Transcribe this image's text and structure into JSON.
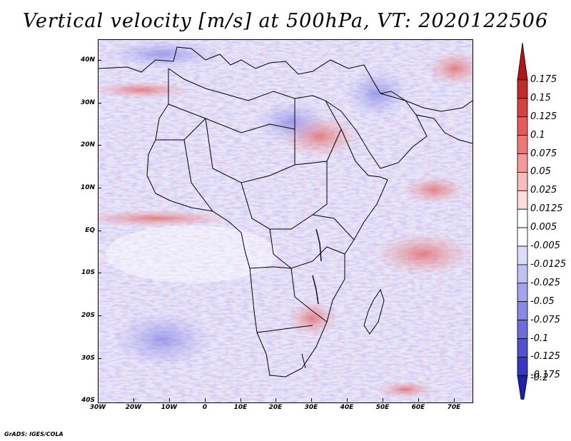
{
  "title": "Vertical velocity [m/s] at 500hPa, VT: 2020122506",
  "credit": "GrADS: IGES/COLA",
  "map": {
    "lat_labels": [
      "40N",
      "30N",
      "20N",
      "10N",
      "EQ",
      "10S",
      "20S",
      "30S",
      "40S"
    ],
    "lon_labels": [
      "30W",
      "20W",
      "10W",
      "0",
      "10E",
      "20E",
      "30E",
      "40E",
      "50E",
      "60E",
      "70E"
    ]
  },
  "colorbar": {
    "labels": [
      "0.175",
      "0.15",
      "0.125",
      "0.1",
      "0.075",
      "0.05",
      "0.025",
      "0.0125",
      "0.005",
      "-0.005",
      "-0.0125",
      "-0.025",
      "-0.05",
      "-0.075",
      "-0.1",
      "-0.125",
      "-0.175",
      "-0.2"
    ],
    "colors": [
      "#b01818",
      "#c42a2a",
      "#d84040",
      "#e55a5a",
      "#ee7878",
      "#f49a9a",
      "#f9bcbc",
      "#fcdcdc",
      "#ffffff",
      "#ffffff",
      "#dcdcfb",
      "#c0c0f5",
      "#a4a4ee",
      "#8888e6",
      "#6c6cdc",
      "#5050d0",
      "#3636c2",
      "#2020b0"
    ]
  }
}
